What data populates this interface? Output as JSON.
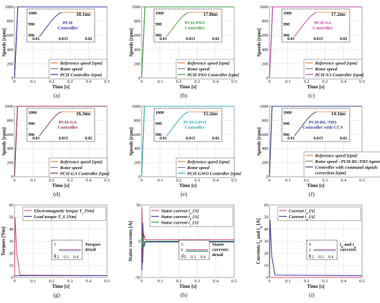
{
  "chart_data": [
    {
      "type": "line",
      "caption": "(a)",
      "xlabel": "Time [s]",
      "ylabel": "Speeds [rpm]",
      "xlim": [
        0,
        0.5
      ],
      "ylim": [
        0,
        1000
      ],
      "xticks": [
        "0",
        "0.1",
        "0.2",
        "0.3",
        "0.4",
        "0.5"
      ],
      "yticks": [
        "0",
        "200",
        "400",
        "600",
        "800",
        "1000"
      ],
      "series": [
        {
          "name": "Reference speed [rpm]",
          "color": "#e8772e",
          "x": [
            0,
            0.002,
            0.5
          ],
          "y": [
            1000,
            1000,
            1000
          ]
        },
        {
          "name": "Rotor speed",
          "color": "#7a7a7a",
          "x": [
            0,
            0.0181,
            0.5
          ],
          "y": [
            0,
            1000,
            1000
          ]
        },
        {
          "name": "PCH Controller [rpm]",
          "color": "#2a2aa8",
          "x": [
            0,
            0.0181,
            0.5
          ],
          "y": [
            0,
            1000,
            1000
          ]
        }
      ],
      "inset": {
        "yticks": [
          "1000",
          "998",
          "996"
        ],
        "xticks": [
          "0.01",
          "0.015",
          "0.02"
        ],
        "time": "18.1ms",
        "label": "PCH\nController",
        "label_color": "#2a2aa8"
      }
    },
    {
      "type": "line",
      "caption": "(b)",
      "xlabel": "Time [s]",
      "ylabel": "Speeds [rpm]",
      "xlim": [
        0,
        0.5
      ],
      "ylim": [
        0,
        1000
      ],
      "xticks": [
        "0",
        "0.1",
        "0.2",
        "0.3",
        "0.4",
        "0.5"
      ],
      "yticks": [
        "0",
        "200",
        "400",
        "600",
        "800",
        "1000"
      ],
      "series": [
        {
          "name": "Reference speed [rpm]",
          "color": "#e8772e",
          "x": [
            0,
            0.002,
            0.5
          ],
          "y": [
            1000,
            1000,
            1000
          ]
        },
        {
          "name": "Rotor speed",
          "color": "#7a7a7a",
          "x": [
            0,
            0.0178,
            0.5
          ],
          "y": [
            0,
            1000,
            1000
          ]
        },
        {
          "name": "PCH-PSO Controller [rpm]",
          "color": "#3a9a3a",
          "x": [
            0,
            0.0178,
            0.5
          ],
          "y": [
            0,
            1000,
            1000
          ]
        }
      ],
      "inset": {
        "yticks": [
          "1000",
          "998",
          "996"
        ],
        "xticks": [
          "0.01",
          "0.015",
          "0.02"
        ],
        "time": "17.8ms",
        "label": "PCH-PSO\nController",
        "label_color": "#3a9a3a"
      }
    },
    {
      "type": "line",
      "caption": "(c)",
      "xlabel": "Time [s]",
      "ylabel": "Speeds [rpm]",
      "xlim": [
        0,
        0.5
      ],
      "ylim": [
        0,
        1000
      ],
      "xticks": [
        "0",
        "0.1",
        "0.2",
        "0.3",
        "0.4",
        "0.5"
      ],
      "yticks": [
        "0",
        "200",
        "400",
        "600",
        "800",
        "1000"
      ],
      "series": [
        {
          "name": "Reference speed [rpm]",
          "color": "#e8772e",
          "x": [
            0,
            0.002,
            0.5
          ],
          "y": [
            1000,
            1000,
            1000
          ]
        },
        {
          "name": "Rotor speed",
          "color": "#7a7a7a",
          "x": [
            0,
            0.0172,
            0.5
          ],
          "y": [
            0,
            1000,
            1000
          ]
        },
        {
          "name": "PCH-SA Controller [rpm]",
          "color": "#c23aa8",
          "x": [
            0,
            0.0172,
            0.5
          ],
          "y": [
            0,
            1000,
            1000
          ]
        }
      ],
      "inset": {
        "yticks": [
          "1000",
          "998",
          "996"
        ],
        "xticks": [
          "0.01",
          "0.015",
          "0.02"
        ],
        "time": "17.2ms",
        "label": "PCH-SA\nController",
        "label_color": "#c23aa8"
      }
    },
    {
      "type": "line",
      "caption": "(d)",
      "xlabel": "Time [s]",
      "ylabel": "Speeds [rpm]",
      "xlim": [
        0,
        0.5
      ],
      "ylim": [
        0,
        1000
      ],
      "xticks": [
        "0",
        "0.1",
        "0.2",
        "0.3",
        "0.4",
        "0.5"
      ],
      "yticks": [
        "0",
        "200",
        "400",
        "600",
        "800",
        "1000"
      ],
      "series": [
        {
          "name": "Reference speed [rpm]",
          "color": "#e8772e",
          "x": [
            0,
            0.002,
            0.5
          ],
          "y": [
            1000,
            1000,
            1000
          ]
        },
        {
          "name": "Rotor speed",
          "color": "#7a7a7a",
          "x": [
            0,
            0.0163,
            0.5
          ],
          "y": [
            0,
            1000,
            1000
          ]
        },
        {
          "name": "PCH-GA Controller [rpm]",
          "color": "#8a2a4a",
          "x": [
            0,
            0.0163,
            0.5
          ],
          "y": [
            0,
            1000,
            1000
          ]
        }
      ],
      "inset": {
        "yticks": [
          "1000",
          "998",
          "996"
        ],
        "xticks": [
          "0.01",
          "0.015",
          "0.02"
        ],
        "time": "16.3ms",
        "label": "PCH-GA\nController",
        "label_color": "#8a2a4a"
      }
    },
    {
      "type": "line",
      "caption": "(e)",
      "xlabel": "Time [s]",
      "ylabel": "Speeds [rpm]",
      "xlim": [
        0,
        0.5
      ],
      "ylim": [
        0,
        1000
      ],
      "xticks": [
        "0",
        "0.1",
        "0.2",
        "0.3",
        "0.4",
        "0.5"
      ],
      "yticks": [
        "0",
        "200",
        "400",
        "600",
        "800",
        "1000"
      ],
      "series": [
        {
          "name": "Reference speed [rpm]",
          "color": "#e8772e",
          "x": [
            0,
            0.002,
            0.5
          ],
          "y": [
            1000,
            1000,
            1000
          ]
        },
        {
          "name": "Rotor speed",
          "color": "#7a7a7a",
          "x": [
            0,
            0.0152,
            0.5
          ],
          "y": [
            0,
            1000,
            1000
          ]
        },
        {
          "name": "PCH-GWO Controller [rpm]",
          "color": "#2aa8b8",
          "x": [
            0,
            0.0152,
            0.5
          ],
          "y": [
            0,
            1000,
            1000
          ]
        }
      ],
      "inset": {
        "yticks": [
          "1000",
          "998",
          "996"
        ],
        "xticks": [
          "0.01",
          "0.015",
          "0.02"
        ],
        "time": "15.2ms",
        "label": "PCH-GWO\nController",
        "label_color": "#2aa8b8"
      }
    },
    {
      "type": "line",
      "caption": "(f)",
      "xlabel": "Time [s]",
      "ylabel": "Speeds [rpm]",
      "xlim": [
        0,
        0.5
      ],
      "ylim": [
        0,
        1000
      ],
      "xticks": [
        "0",
        "0.1",
        "0.2",
        "0.3",
        "0.4",
        "0.5"
      ],
      "yticks": [
        "0",
        "200",
        "400",
        "600",
        "800",
        "1000"
      ],
      "series": [
        {
          "name": "Reference speed [rpm]",
          "color": "#e8772e",
          "x": [
            0,
            0.002,
            0.5
          ],
          "y": [
            1000,
            1000,
            1000
          ]
        },
        {
          "name": "Rotor speed - PCH-RL-TD3 Agent",
          "color": "#7a7a7a",
          "x": [
            0,
            0.0141,
            0.5
          ],
          "y": [
            0,
            1000,
            1000
          ]
        },
        {
          "name": "Controller with command signals\ncorrection [rpm]",
          "color": "#2a3a8a",
          "x": [
            0,
            0.0141,
            0.5
          ],
          "y": [
            0,
            1000,
            1000
          ]
        }
      ],
      "inset": {
        "yticks": [
          "1000",
          "998",
          "996"
        ],
        "xticks": [
          "0.01",
          "0.015",
          "0.02"
        ],
        "time": "14.1ms",
        "label": "PCH-RL-TD3\nController with CCS",
        "label_color": "#2a3a8a"
      }
    },
    {
      "type": "line",
      "caption": "(g)",
      "xlabel": "Time [s]",
      "ylabel": "Torques [Nm]",
      "xlim": [
        0,
        0.5
      ],
      "ylim": [
        0,
        60
      ],
      "xticks": [
        "0",
        "0.1",
        "0.2",
        "0.3",
        "0.4",
        "0.5"
      ],
      "yticks": [
        "0",
        "10",
        "20",
        "30",
        "40",
        "50",
        "60"
      ],
      "series": [
        {
          "name": "Electromagnetic torque T_e [Nm]",
          "color": "#d0506a",
          "x": [
            0,
            0.003,
            0.012,
            0.03,
            0.5
          ],
          "y": [
            0,
            50,
            20,
            2,
            1.5
          ]
        },
        {
          "name": "Load torque T_L [Nm]",
          "color": "#3a3a9a",
          "x": [
            0,
            0.5
          ],
          "y": [
            1.5,
            1.5
          ]
        }
      ],
      "inset": {
        "yticks": [
          "5",
          "0"
        ],
        "xticks": [
          "0.2",
          "0.3",
          "0.4"
        ],
        "note": "Torques\ndetail"
      }
    },
    {
      "type": "line",
      "caption": "(h)",
      "xlabel": "Time [s]",
      "ylabel": "Stator currents [A]",
      "xlim": [
        0,
        0.5
      ],
      "ylim": [
        -50,
        50
      ],
      "xticks": [
        "0",
        "0.1",
        "0.2",
        "0.3",
        "0.4",
        "0.5"
      ],
      "yticks": [
        "-50",
        "0",
        "50"
      ],
      "series": [
        {
          "name": "Stator current i_a [A]",
          "color": "#d0506a",
          "x": [
            0,
            0.002,
            0.006,
            0.012,
            0.02,
            0.5
          ],
          "y": [
            0,
            45,
            -30,
            10,
            2,
            2
          ]
        },
        {
          "name": "Stator current i_b [A]",
          "color": "#3a3a9a",
          "x": [
            0,
            0.002,
            0.006,
            0.012,
            0.02,
            0.5
          ],
          "y": [
            0,
            -40,
            25,
            -8,
            -1,
            -1
          ]
        },
        {
          "name": "Stator current i_c [A]",
          "color": "#2a9a4a",
          "x": [
            0,
            0.002,
            0.006,
            0.012,
            0.02,
            0.5
          ],
          "y": [
            0,
            -10,
            8,
            -3,
            0,
            0
          ]
        }
      ],
      "inset": {
        "yticks": [
          "5",
          "0",
          "-5"
        ],
        "xticks": [
          "0.2",
          "0.3",
          "0.4"
        ],
        "note": "Stator\ncurrents\ndetail"
      }
    },
    {
      "type": "line",
      "caption": "(i)",
      "xlabel": "Time [s]",
      "ylabel": "Currents i_d and i_q [A]",
      "xlim": [
        0,
        0.5
      ],
      "ylim": [
        0,
        60
      ],
      "xticks": [
        "0",
        "0.1",
        "0.2",
        "0.3",
        "0.4",
        "0.5"
      ],
      "yticks": [
        "0",
        "10",
        "20",
        "30",
        "40",
        "50",
        "60"
      ],
      "series": [
        {
          "name": "Current i_d [A]",
          "color": "#d0506a",
          "x": [
            0,
            0.5
          ],
          "y": [
            0,
            0
          ]
        },
        {
          "name": "Current i_q [A]",
          "color": "#3a3a9a",
          "x": [
            0,
            0.003,
            0.012,
            0.03,
            0.5
          ],
          "y": [
            0,
            48,
            18,
            2,
            1.5
          ]
        }
      ],
      "inset": {
        "yticks": [
          "4",
          "2",
          "0"
        ],
        "xticks": [
          "0.2",
          "0.3",
          "0.4"
        ],
        "note": "i_d and i_q\ncurrents"
      }
    }
  ]
}
